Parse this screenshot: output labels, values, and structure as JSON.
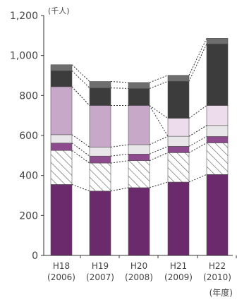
{
  "chart_data": {
    "type": "bar",
    "stacked": true,
    "unit_label": "(千人)",
    "year_unit_label": "(年度)",
    "categories": [
      "H18",
      "H19",
      "H20",
      "H21",
      "H22"
    ],
    "category_years": [
      "(2006)",
      "(2007)",
      "(2008)",
      "(2009)",
      "(2010)"
    ],
    "y_ticks": [
      "0",
      "200",
      "400",
      "600",
      "800",
      "1,000",
      "1,200"
    ],
    "ylim": [
      0,
      1200
    ],
    "grid": false,
    "series": [
      {
        "color": "#6b2a6b",
        "pattern": "solid",
        "values": [
          355,
          322,
          339,
          367,
          405
        ]
      },
      {
        "color": "#ffffff",
        "pattern": "hatch",
        "values": [
          170,
          140,
          135,
          147,
          158
        ]
      },
      {
        "color": "#8d4b8d",
        "pattern": "solid",
        "values": [
          37,
          35,
          33,
          32,
          32
        ]
      },
      {
        "color": "#e8e6e8",
        "pattern": "solid",
        "values": [
          42,
          45,
          47,
          50,
          55
        ]
      },
      {
        "color": "#c8a8c8",
        "pattern": "solid",
        "values": [
          240,
          208,
          196,
          0,
          0
        ]
      },
      {
        "color": "#ecdcec",
        "pattern": "solid",
        "values": [
          0,
          0,
          0,
          90,
          100
        ]
      },
      {
        "color": "#3c3c3c",
        "pattern": "solid",
        "values": [
          80,
          88,
          85,
          185,
          308
        ]
      },
      {
        "color": "#6e6e6e",
        "pattern": "solid",
        "values": [
          30,
          32,
          30,
          30,
          28
        ]
      }
    ]
  }
}
